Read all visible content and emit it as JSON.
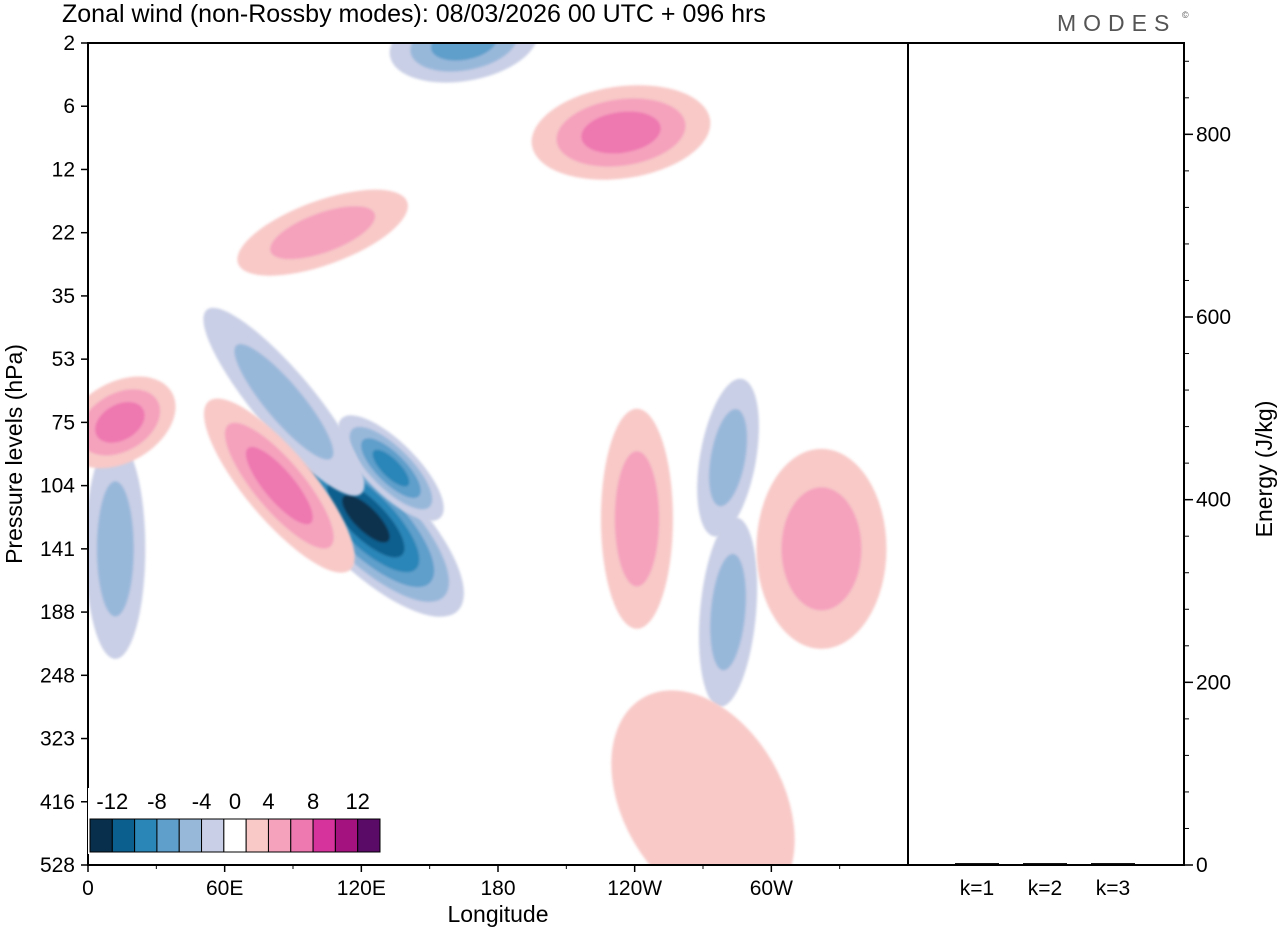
{
  "title": "Zonal wind (non-Rossby modes):  08/03/2026  00 UTC  + 096 hrs",
  "logo": "MODES",
  "logo_mark": "©",
  "chart_data": [
    {
      "type": "heatmap",
      "title": "Zonal wind (non-Rossby modes):  08/03/2026  00 UTC  + 096 hrs",
      "xlabel": "Longitude",
      "ylabel": "Pressure levels (hPa)",
      "x_ticks": [
        "0",
        "60E",
        "120E",
        "180",
        "120W",
        "60W"
      ],
      "x_tick_values": [
        0,
        60,
        120,
        180,
        240,
        300
      ],
      "xlim": [
        0,
        360
      ],
      "y_ticks": [
        "2",
        "6",
        "12",
        "22",
        "35",
        "53",
        "75",
        "104",
        "141",
        "188",
        "248",
        "323",
        "416",
        "528"
      ],
      "colorbar": {
        "tick_labels": [
          "-12",
          "-8",
          "-4",
          "0",
          "4",
          "8",
          "12"
        ],
        "levels": [
          -14,
          -12,
          -10,
          -8,
          -6,
          -4,
          -2,
          2,
          4,
          6,
          8,
          10,
          12,
          14
        ],
        "colors": [
          "#08304d",
          "#0a5f8e",
          "#2b86b8",
          "#5e9fcb",
          "#98b8da",
          "#c9cfe6",
          "#ffffff",
          "#f8c9c7",
          "#f5a2bd",
          "#ee78b0",
          "#d6339c",
          "#a4127f",
          "#5a0a67"
        ]
      },
      "features": [
        {
          "name": "jet-core-negative",
          "lon": 122,
          "level": "122",
          "value": -14
        },
        {
          "name": "jet-core-negative-2",
          "lon": 133,
          "level": "95",
          "value": -10
        },
        {
          "name": "negative-west",
          "lon": 12,
          "level": "141",
          "value": -6
        },
        {
          "name": "negative-mid",
          "lon": 86,
          "level": "67",
          "value": -6
        },
        {
          "name": "negative-upper",
          "lon": 165,
          "level": "2",
          "value": -8
        },
        {
          "name": "negative-west-pacific",
          "lon": 281,
          "level": "90",
          "value": -6
        },
        {
          "name": "negative-east-pacific",
          "lon": 281,
          "level": "188",
          "value": -6
        },
        {
          "name": "positive-far-west",
          "lon": 14,
          "level": "75",
          "value": 8
        },
        {
          "name": "positive-mid",
          "lon": 84,
          "level": "104",
          "value": 8
        },
        {
          "name": "positive-strat",
          "lon": 103,
          "level": "22",
          "value": 6
        },
        {
          "name": "positive-upper",
          "lon": 234,
          "level": "8",
          "value": 8
        },
        {
          "name": "positive-central",
          "lon": 241,
          "level": "122",
          "value": 6
        },
        {
          "name": "positive-east",
          "lon": 322,
          "level": "141",
          "value": 6
        },
        {
          "name": "positive-lower",
          "lon": 270,
          "level": "416",
          "value": 4
        }
      ]
    },
    {
      "type": "bar",
      "categories": [
        "k=1",
        "k=2",
        "k=3"
      ],
      "values": [
        1,
        1,
        1
      ],
      "ylabel": "Energy (J/kg)",
      "ylim": [
        0,
        900
      ],
      "y_ticks": [
        0,
        200,
        400,
        600,
        800
      ],
      "y_minor_step": 40
    }
  ]
}
